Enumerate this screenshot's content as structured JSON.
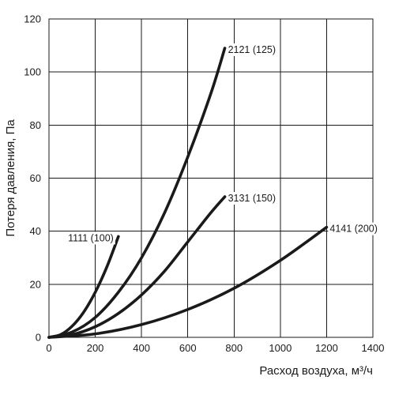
{
  "chart_data": {
    "type": "line",
    "title": "",
    "xlabel": "Расход воздуха, м³/ч",
    "ylabel": "Потеря давления, Па",
    "xlim": [
      0,
      1400
    ],
    "ylim": [
      0,
      120
    ],
    "x_ticks": [
      0,
      200,
      400,
      600,
      800,
      1000,
      1200,
      1400
    ],
    "y_ticks": [
      0,
      20,
      40,
      60,
      80,
      100,
      120
    ],
    "grid": true,
    "legend": "none",
    "line_color": "#1a1a1a",
    "series": [
      {
        "name": "1111 (100)",
        "label_anchor": "start",
        "x": [
          0,
          50,
          100,
          150,
          200,
          250,
          300
        ],
        "y": [
          0,
          1.0,
          4.2,
          9.5,
          17.0,
          26.5,
          38.0
        ]
      },
      {
        "name": "2121 (125)",
        "label_anchor": "end",
        "x": [
          0,
          100,
          200,
          300,
          400,
          500,
          600,
          700,
          760
        ],
        "y": [
          0,
          2.0,
          7.5,
          17.0,
          30.0,
          47.0,
          68.0,
          92.0,
          109.0
        ]
      },
      {
        "name": "3131 (150)",
        "label_anchor": "end",
        "x": [
          0,
          100,
          200,
          300,
          400,
          500,
          600,
          700,
          760
        ],
        "y": [
          0,
          1.0,
          4.0,
          9.0,
          16.0,
          25.0,
          36.0,
          47.0,
          53.0
        ]
      },
      {
        "name": "4141 (200)",
        "label_anchor": "end",
        "x": [
          0,
          200,
          400,
          600,
          800,
          1000,
          1200
        ],
        "y": [
          0,
          1.3,
          4.8,
          10.5,
          18.5,
          29.0,
          41.5
        ]
      }
    ]
  }
}
